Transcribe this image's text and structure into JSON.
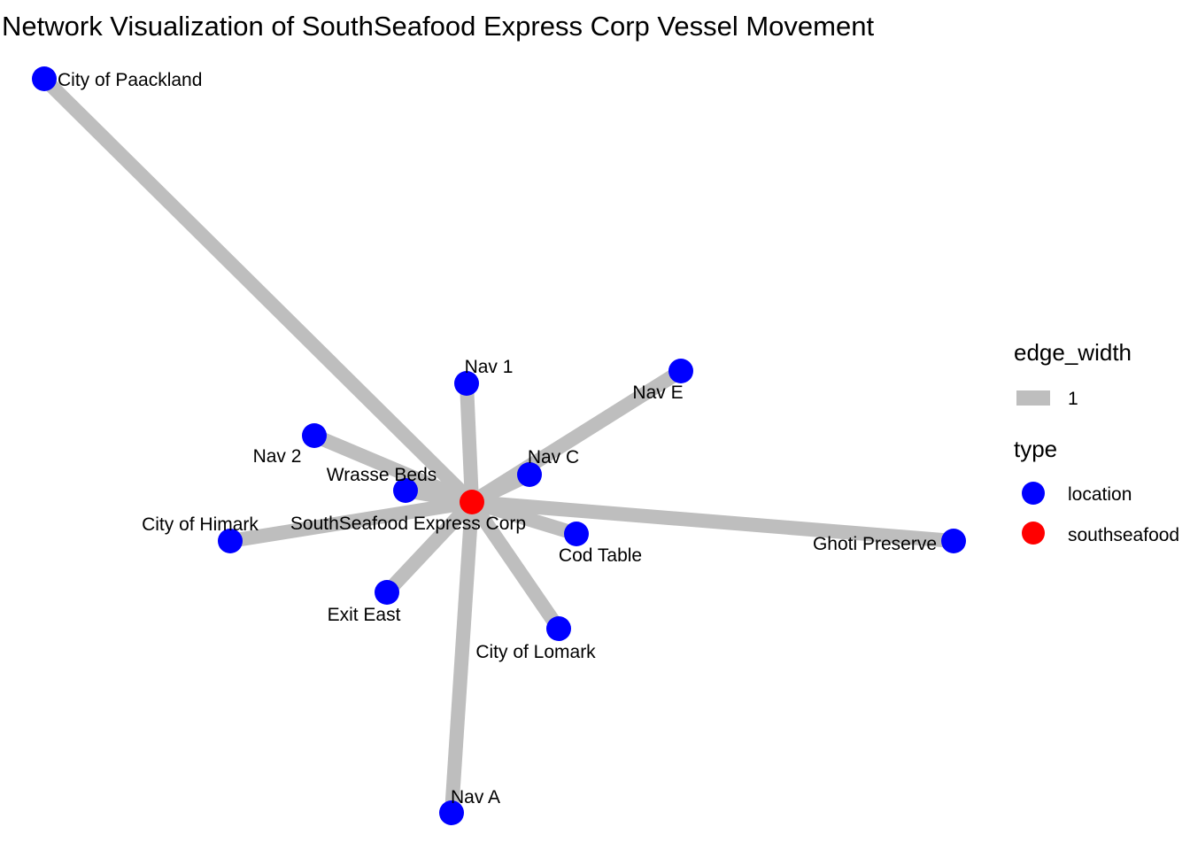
{
  "title": "Network Visualization of SouthSeafood Express Corp Vessel Movement",
  "colors": {
    "edge": "#bebebe",
    "location": "#0000ff",
    "southseafood": "#ff0000"
  },
  "legend": {
    "edge_title": "edge_width",
    "edge_value": "1",
    "type_title": "type",
    "types": [
      {
        "label": "location",
        "color": "#0000ff"
      },
      {
        "label": "southseafood",
        "color": "#ff0000"
      }
    ]
  },
  "nodes": [
    {
      "id": "southseafood-express-corp",
      "label": "SouthSeafood Express Corp",
      "type": "southseafood"
    },
    {
      "id": "city-of-paackland",
      "label": "City of Paackland",
      "type": "location"
    },
    {
      "id": "nav-1",
      "label": "Nav 1",
      "type": "location"
    },
    {
      "id": "nav-e",
      "label": "Nav E",
      "type": "location"
    },
    {
      "id": "nav-2",
      "label": "Nav 2",
      "type": "location"
    },
    {
      "id": "wrasse-beds",
      "label": "Wrasse Beds",
      "type": "location"
    },
    {
      "id": "nav-c",
      "label": "Nav C",
      "type": "location"
    },
    {
      "id": "city-of-himark",
      "label": "City of Himark",
      "type": "location"
    },
    {
      "id": "cod-table",
      "label": "Cod Table",
      "type": "location"
    },
    {
      "id": "ghoti-preserve",
      "label": "Ghoti Preserve",
      "type": "location"
    },
    {
      "id": "exit-east",
      "label": "Exit East",
      "type": "location"
    },
    {
      "id": "city-of-lomark",
      "label": "City of Lomark",
      "type": "location"
    },
    {
      "id": "nav-a",
      "label": "Nav A",
      "type": "location"
    }
  ],
  "edges": [
    {
      "from": "southseafood-express-corp",
      "to": "city-of-paackland",
      "edge_width": 1
    },
    {
      "from": "southseafood-express-corp",
      "to": "nav-1",
      "edge_width": 1
    },
    {
      "from": "southseafood-express-corp",
      "to": "nav-e",
      "edge_width": 1
    },
    {
      "from": "southseafood-express-corp",
      "to": "nav-2",
      "edge_width": 1
    },
    {
      "from": "southseafood-express-corp",
      "to": "wrasse-beds",
      "edge_width": 1
    },
    {
      "from": "southseafood-express-corp",
      "to": "nav-c",
      "edge_width": 1
    },
    {
      "from": "southseafood-express-corp",
      "to": "city-of-himark",
      "edge_width": 1
    },
    {
      "from": "southseafood-express-corp",
      "to": "cod-table",
      "edge_width": 1
    },
    {
      "from": "southseafood-express-corp",
      "to": "ghoti-preserve",
      "edge_width": 1
    },
    {
      "from": "southseafood-express-corp",
      "to": "exit-east",
      "edge_width": 1
    },
    {
      "from": "southseafood-express-corp",
      "to": "city-of-lomark",
      "edge_width": 1
    },
    {
      "from": "southseafood-express-corp",
      "to": "nav-a",
      "edge_width": 1
    }
  ]
}
